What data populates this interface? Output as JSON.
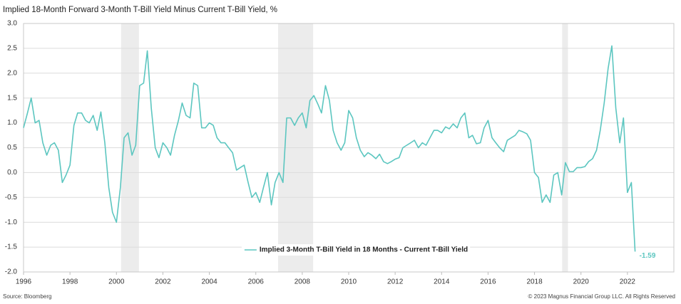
{
  "chart_data": {
    "type": "line",
    "title": "Implied 18-Month Forward 3-Month T-Bill Yield Minus Current T-Bill Yield, %",
    "source": "Source: Bloomberg",
    "copyright": "© 2023 Magnus Financial Group LLC. All Rights Reserved",
    "end_label": "-1.59",
    "legend": "bottom-center",
    "grid": true,
    "xlim": [
      1996,
      2024
    ],
    "xticks": [
      1996,
      1998,
      2000,
      2002,
      2004,
      2006,
      2008,
      2010,
      2012,
      2014,
      2016,
      2018,
      2020,
      2022
    ],
    "ylim": [
      -2,
      3
    ],
    "yticks": [
      {
        "value": 3,
        "label": "3.0"
      },
      2.5,
      {
        "value": 2,
        "label": "2.0"
      },
      1.5,
      {
        "value": 1,
        "label": "1.0"
      },
      0.5,
      {
        "value": 0,
        "label": "0.0"
      },
      -0.5,
      {
        "value": -1,
        "label": "-1.0"
      },
      -1.5,
      {
        "value": -2,
        "label": "-2.0"
      }
    ],
    "shaded_regions": [
      [
        2000.2,
        2000.97
      ],
      [
        2006.96,
        2008.47
      ],
      [
        2019.19,
        2019.44
      ]
    ],
    "shade_color": "#ececec",
    "x": [
      1996,
      1996.17,
      1996.33,
      1996.5,
      1996.67,
      1996.83,
      1997,
      1997.17,
      1997.33,
      1997.5,
      1997.67,
      1997.83,
      1998,
      1998.17,
      1998.33,
      1998.5,
      1998.67,
      1998.83,
      1999,
      1999.17,
      1999.33,
      1999.5,
      1999.67,
      1999.83,
      2000,
      2000.17,
      2000.33,
      2000.5,
      2000.67,
      2000.83,
      2001,
      2001.17,
      2001.33,
      2001.5,
      2001.67,
      2001.83,
      2002,
      2002.17,
      2002.33,
      2002.5,
      2002.67,
      2002.83,
      2003,
      2003.17,
      2003.33,
      2003.5,
      2003.67,
      2003.83,
      2004,
      2004.17,
      2004.33,
      2004.5,
      2004.67,
      2004.83,
      2005,
      2005.17,
      2005.33,
      2005.5,
      2005.67,
      2005.83,
      2006,
      2006.17,
      2006.33,
      2006.5,
      2006.67,
      2006.83,
      2007,
      2007.17,
      2007.33,
      2007.5,
      2007.67,
      2007.83,
      2008,
      2008.17,
      2008.33,
      2008.5,
      2008.67,
      2008.83,
      2009,
      2009.17,
      2009.33,
      2009.5,
      2009.67,
      2009.83,
      2010,
      2010.17,
      2010.33,
      2010.5,
      2010.67,
      2010.83,
      2011,
      2011.17,
      2011.33,
      2011.5,
      2011.67,
      2011.83,
      2012,
      2012.17,
      2012.33,
      2012.5,
      2012.67,
      2012.83,
      2013,
      2013.17,
      2013.33,
      2013.5,
      2013.67,
      2013.83,
      2014,
      2014.17,
      2014.33,
      2014.5,
      2014.67,
      2014.83,
      2015,
      2015.17,
      2015.33,
      2015.5,
      2015.67,
      2015.83,
      2016,
      2016.17,
      2016.33,
      2016.5,
      2016.67,
      2016.83,
      2017,
      2017.17,
      2017.33,
      2017.5,
      2017.67,
      2017.83,
      2018,
      2018.17,
      2018.33,
      2018.5,
      2018.67,
      2018.83,
      2019,
      2019.17,
      2019.33,
      2019.5,
      2019.67,
      2019.83,
      2020,
      2020.17,
      2020.33,
      2020.5,
      2020.67,
      2020.83,
      2021,
      2021.17,
      2021.33,
      2021.5,
      2021.67,
      2021.83,
      2022,
      2022.17,
      2022.33
    ],
    "series": [
      {
        "name": "Implied 3-Month T-Bill Yield in 18 Months - Current T-Bill Yield",
        "color": "#5cc6c0",
        "values": [
          0.9,
          1.2,
          1.5,
          1.0,
          1.05,
          0.6,
          0.35,
          0.55,
          0.6,
          0.45,
          -0.2,
          -0.05,
          0.15,
          0.95,
          1.2,
          1.2,
          1.05,
          1.0,
          1.15,
          0.85,
          1.22,
          0.6,
          -0.3,
          -0.8,
          -1.0,
          -0.3,
          0.7,
          0.8,
          0.35,
          0.55,
          1.75,
          1.8,
          2.45,
          1.3,
          0.5,
          0.3,
          0.6,
          0.5,
          0.35,
          0.75,
          1.05,
          1.4,
          1.15,
          1.1,
          1.8,
          1.75,
          0.9,
          0.9,
          1.0,
          0.95,
          0.7,
          0.6,
          0.6,
          0.5,
          0.4,
          0.05,
          0.1,
          0.15,
          -0.2,
          -0.5,
          -0.4,
          -0.6,
          -0.3,
          0.0,
          -0.65,
          -0.2,
          0.0,
          -0.2,
          1.1,
          1.1,
          0.95,
          1.1,
          1.2,
          0.9,
          1.45,
          1.55,
          1.38,
          1.2,
          1.75,
          1.45,
          0.85,
          0.6,
          0.45,
          0.6,
          1.25,
          1.1,
          0.7,
          0.45,
          0.32,
          0.4,
          0.35,
          0.28,
          0.37,
          0.22,
          0.18,
          0.22,
          0.27,
          0.3,
          0.5,
          0.55,
          0.6,
          0.65,
          0.5,
          0.6,
          0.55,
          0.7,
          0.85,
          0.85,
          0.8,
          0.92,
          0.88,
          0.98,
          0.9,
          1.1,
          1.2,
          0.7,
          0.75,
          0.58,
          0.6,
          0.9,
          1.05,
          0.7,
          0.6,
          0.5,
          0.42,
          0.65,
          0.7,
          0.75,
          0.85,
          0.82,
          0.78,
          0.65,
          0.0,
          -0.1,
          -0.6,
          -0.45,
          -0.6,
          -0.05,
          0.0,
          -0.45,
          0.2,
          0.02,
          0.02,
          0.1,
          0.1,
          0.12,
          0.22,
          0.28,
          0.45,
          0.85,
          1.4,
          2.1,
          2.55,
          1.3,
          0.6,
          1.1,
          -0.4,
          -0.2,
          -1.59
        ]
      }
    ]
  }
}
